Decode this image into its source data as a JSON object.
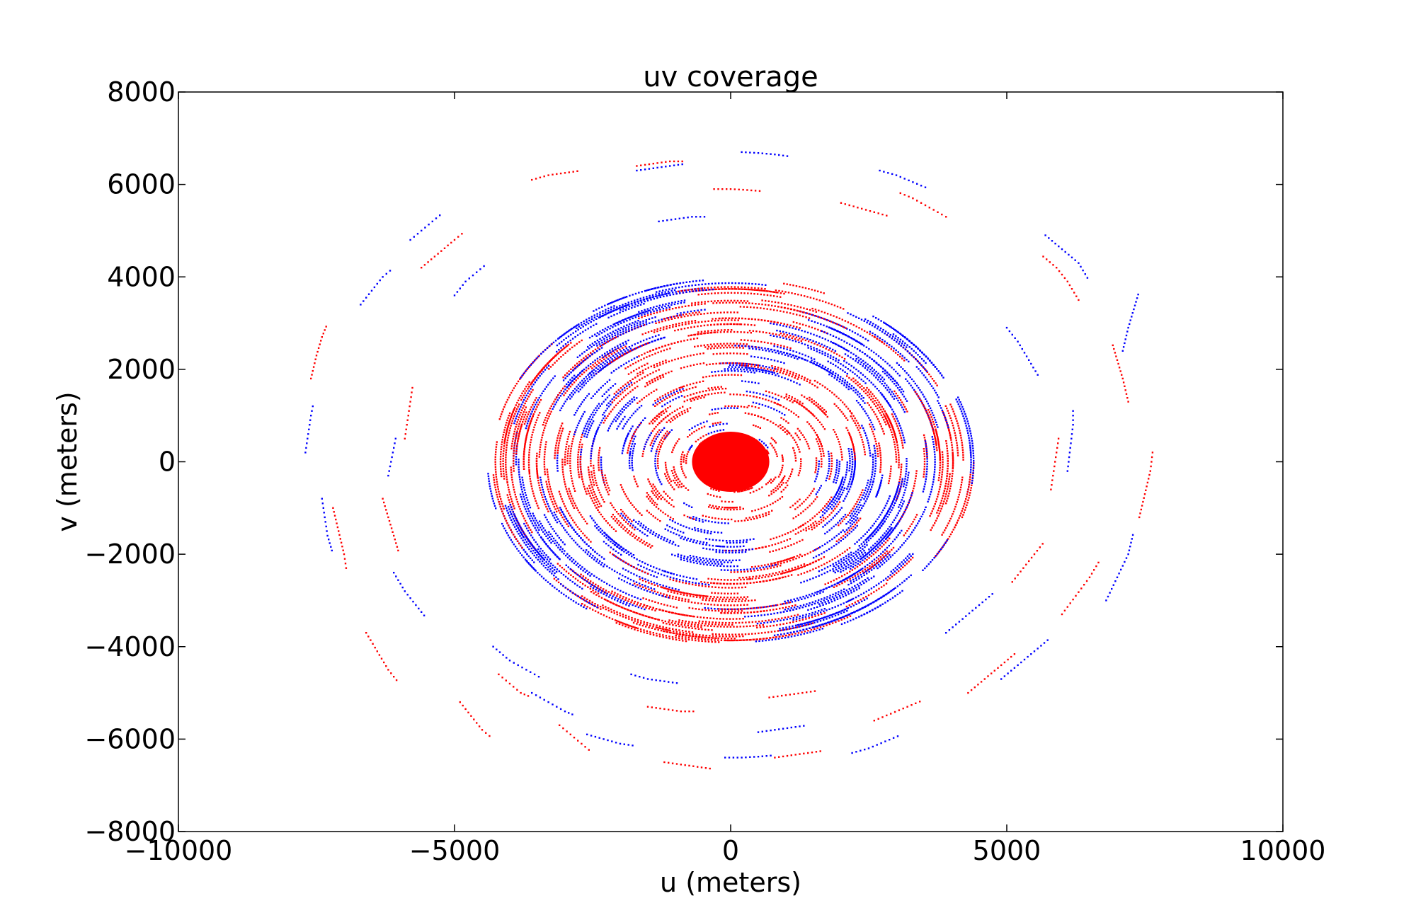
{
  "chart_data": {
    "type": "scatter",
    "title": "uv coverage",
    "xlabel": "u (meters)",
    "ylabel": "v (meters)",
    "xlim": [
      -10000,
      10000
    ],
    "ylim": [
      -8000,
      8000
    ],
    "xticks": [
      -10000,
      -5000,
      0,
      5000,
      10000
    ],
    "xtick_labels": [
      "−10000",
      "−5000",
      "0",
      "5000",
      "10000"
    ],
    "yticks": [
      -8000,
      -6000,
      -4000,
      -2000,
      0,
      2000,
      4000,
      6000,
      8000
    ],
    "ytick_labels": [
      "−8000",
      "−6000",
      "−4000",
      "−2000",
      "0",
      "2000",
      "4000",
      "6000",
      "8000"
    ],
    "grid": false,
    "legend": "none",
    "series": [
      {
        "color": "#ff0000",
        "tracks": [
          {
            "u": [
              -7600,
              -7500,
              -7400,
              -7300
            ],
            "v": [
              1800,
              2300,
              2700,
              3000
            ]
          },
          {
            "u": [
              -7200,
              -7100,
              -7000,
              -6950
            ],
            "v": [
              -1000,
              -1500,
              -2000,
              -2400
            ]
          },
          {
            "u": [
              -6600,
              -6400,
              -6200,
              -6000
            ],
            "v": [
              -3700,
              -4100,
              -4500,
              -4800
            ]
          },
          {
            "u": [
              -4900,
              -4700,
              -4500,
              -4300
            ],
            "v": [
              -5200,
              -5500,
              -5800,
              -6000
            ]
          },
          {
            "u": [
              -3100,
              -2900,
              -2700,
              -2500
            ],
            "v": [
              -5700,
              -5900,
              -6100,
              -6300
            ]
          },
          {
            "u": [
              -1200,
              -900,
              -600,
              -300
            ],
            "v": [
              -6500,
              -6550,
              -6600,
              -6650
            ]
          },
          {
            "u": [
              800,
              1100,
              1400,
              1700
            ],
            "v": [
              -6400,
              -6350,
              -6300,
              -6250
            ]
          },
          {
            "u": [
              2600,
              2900,
              3200,
              3500
            ],
            "v": [
              -5600,
              -5450,
              -5300,
              -5150
            ]
          },
          {
            "u": [
              4300,
              4600,
              4900,
              5200
            ],
            "v": [
              -5000,
              -4700,
              -4400,
              -4100
            ]
          },
          {
            "u": [
              6000,
              6250,
              6500,
              6700
            ],
            "v": [
              -3300,
              -2900,
              -2500,
              -2100
            ]
          },
          {
            "u": [
              7400,
              7500,
              7600,
              7650
            ],
            "v": [
              -1200,
              -700,
              -200,
              300
            ]
          },
          {
            "u": [
              7200,
              7100,
              7000,
              6900
            ],
            "v": [
              1300,
              1800,
              2200,
              2600
            ]
          },
          {
            "u": [
              6300,
              6100,
              5900,
              5600
            ],
            "v": [
              3500,
              3900,
              4200,
              4500
            ]
          },
          {
            "u": [
              3900,
              3600,
              3300,
              3000
            ],
            "v": [
              5300,
              5500,
              5700,
              5850
            ]
          },
          {
            "u": [
              -1700,
              -1400,
              -1100,
              -800
            ],
            "v": [
              6400,
              6450,
              6500,
              6500
            ]
          },
          {
            "u": [
              -3600,
              -3300,
              -3000,
              -2700
            ],
            "v": [
              6100,
              6200,
              6250,
              6300
            ]
          },
          {
            "u": [
              -5600,
              -5300,
              -5000,
              -4800
            ],
            "v": [
              4200,
              4500,
              4800,
              5000
            ]
          },
          {
            "u": [
              -6300,
              -6200,
              -6100,
              -6000
            ],
            "v": [
              -800,
              -1200,
              -1600,
              -2000
            ]
          },
          {
            "u": [
              -4200,
              -4000,
              -3800,
              -3600
            ],
            "v": [
              -4600,
              -4800,
              -5000,
              -5100
            ]
          },
          {
            "u": [
              -300,
              0,
              300,
              600
            ],
            "v": [
              5900,
              5900,
              5880,
              5850
            ]
          },
          {
            "u": [
              2000,
              2300,
              2600,
              2900
            ],
            "v": [
              5600,
              5500,
              5400,
              5300
            ]
          },
          {
            "u": [
              5100,
              5300,
              5500,
              5700
            ],
            "v": [
              -2600,
              -2300,
              -2000,
              -1700
            ]
          },
          {
            "u": [
              5800,
              5850,
              5900,
              5950
            ],
            "v": [
              -600,
              -200,
              200,
              600
            ]
          },
          {
            "u": [
              -5900,
              -5850,
              -5800,
              -5750
            ],
            "v": [
              500,
              900,
              1300,
              1700
            ]
          },
          {
            "u": [
              -1500,
              -1200,
              -900,
              -600
            ],
            "v": [
              -5300,
              -5350,
              -5400,
              -5400
            ]
          },
          {
            "u": [
              700,
              1000,
              1300,
              1600
            ],
            "v": [
              -5100,
              -5050,
              -5000,
              -4950
            ]
          }
        ]
      },
      {
        "color": "#0000ff",
        "tracks": [
          {
            "u": [
              -7700,
              -7650,
              -7600,
              -7550
            ],
            "v": [
              200,
              600,
              1000,
              1300
            ]
          },
          {
            "u": [
              -7400,
              -7350,
              -7300,
              -7200
            ],
            "v": [
              -800,
              -1200,
              -1600,
              -2000
            ]
          },
          {
            "u": [
              -6700,
              -6500,
              -6300,
              -6100
            ],
            "v": [
              3400,
              3700,
              4000,
              4200
            ]
          },
          {
            "u": [
              -5800,
              -5600,
              -5400,
              -5200
            ],
            "v": [
              4800,
              5000,
              5200,
              5400
            ]
          },
          {
            "u": [
              -6100,
              -5900,
              -5700,
              -5500
            ],
            "v": [
              -2400,
              -2800,
              -3100,
              -3400
            ]
          },
          {
            "u": [
              -3600,
              -3300,
              -3000,
              -2800
            ],
            "v": [
              -5000,
              -5200,
              -5400,
              -5500
            ]
          },
          {
            "u": [
              -2600,
              -2300,
              -2000,
              -1700
            ],
            "v": [
              -5900,
              -6000,
              -6100,
              -6150
            ]
          },
          {
            "u": [
              -100,
              200,
              500,
              800
            ],
            "v": [
              -6400,
              -6400,
              -6380,
              -6350
            ]
          },
          {
            "u": [
              2200,
              2500,
              2800,
              3100
            ],
            "v": [
              -6300,
              -6200,
              -6050,
              -5900
            ]
          },
          {
            "u": [
              4900,
              5200,
              5500,
              5800
            ],
            "v": [
              -4700,
              -4400,
              -4100,
              -3800
            ]
          },
          {
            "u": [
              6800,
              7000,
              7200,
              7300
            ],
            "v": [
              -3000,
              -2500,
              -2000,
              -1500
            ]
          },
          {
            "u": [
              7100,
              7200,
              7300,
              7400
            ],
            "v": [
              2400,
              2900,
              3300,
              3700
            ]
          },
          {
            "u": [
              5700,
              6000,
              6300,
              6500
            ],
            "v": [
              4900,
              4600,
              4300,
              3900
            ]
          },
          {
            "u": [
              2700,
              3000,
              3300,
              3600
            ],
            "v": [
              6300,
              6200,
              6050,
              5900
            ]
          },
          {
            "u": [
              200,
              500,
              800,
              1100
            ],
            "v": [
              6700,
              6680,
              6650,
              6600
            ]
          },
          {
            "u": [
              -1700,
              -1400,
              -1100,
              -800
            ],
            "v": [
              6300,
              6350,
              6400,
              6450
            ]
          },
          {
            "u": [
              -4300,
              -4000,
              -3700,
              -3400
            ],
            "v": [
              -4000,
              -4300,
              -4500,
              -4700
            ]
          },
          {
            "u": [
              -1800,
              -1500,
              -1200,
              -900
            ],
            "v": [
              -4600,
              -4700,
              -4750,
              -4800
            ]
          },
          {
            "u": [
              500,
              800,
              1100,
              1400
            ],
            "v": [
              -5850,
              -5800,
              -5750,
              -5700
            ]
          },
          {
            "u": [
              3900,
              4200,
              4500,
              4800
            ],
            "v": [
              -3700,
              -3400,
              -3100,
              -2800
            ]
          },
          {
            "u": [
              6100,
              6150,
              6200,
              6200
            ],
            "v": [
              -200,
              300,
              800,
              1200
            ]
          },
          {
            "u": [
              5000,
              5200,
              5400,
              5600
            ],
            "v": [
              2900,
              2600,
              2200,
              1800
            ]
          },
          {
            "u": [
              -1300,
              -1000,
              -700,
              -400
            ],
            "v": [
              5200,
              5250,
              5300,
              5300
            ]
          },
          {
            "u": [
              -6200,
              -6150,
              -6100,
              -6050
            ],
            "v": [
              -300,
              0,
              300,
              600
            ]
          },
          {
            "u": [
              -5000,
              -4800,
              -4600,
              -4400
            ],
            "v": [
              3600,
              3900,
              4100,
              4300
            ]
          }
        ]
      }
    ]
  }
}
